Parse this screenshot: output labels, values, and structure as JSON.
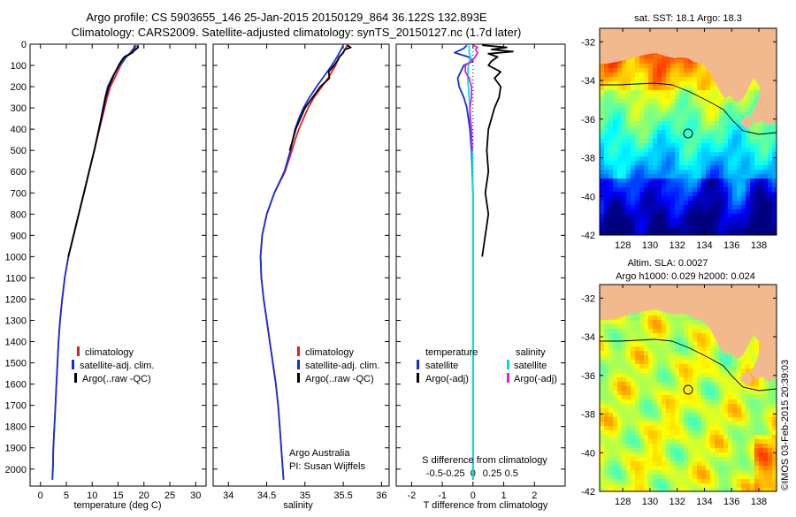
{
  "colors": {
    "climatology": "#e02020",
    "satellite": "#1030e0",
    "argo": "#000000",
    "sal_satellite": "#00e0e0",
    "sal_argo": "#e020e0",
    "land": "#f2b98e"
  },
  "header": {
    "line1": "Argo profile: CS 5903655_146 25-Jan-2015 20150129_864 36.122S 132.893E",
    "line2": "Climatology: CARS2009. Satellite-adjusted climatology: synTS_20150127.nc (1.7d later)"
  },
  "depth_ticks": [
    0,
    100,
    200,
    300,
    400,
    500,
    600,
    700,
    800,
    900,
    1000,
    1100,
    1200,
    1300,
    1400,
    1500,
    1600,
    1700,
    1800,
    1900,
    2000
  ],
  "depth_tick_labels": [
    "0",
    "100",
    "200",
    "300",
    "400",
    "500",
    "600",
    "700",
    "800",
    "900",
    "1000",
    "1100",
    "1200",
    "1300",
    "1400",
    "1500",
    "1600",
    "1700",
    "1800",
    "1900",
    "2000"
  ],
  "chart_data": [
    {
      "type": "line",
      "id": "temperature",
      "xlabel": "temperature (deg C)",
      "ylabel": "depth",
      "xlim": [
        -2,
        32
      ],
      "ylim": [
        2080,
        0
      ],
      "xticks": [
        0,
        5,
        10,
        15,
        20,
        25,
        30
      ],
      "xtick_labels": [
        "0",
        "5",
        "10",
        "15",
        "20",
        "25",
        "30"
      ],
      "legend": [
        "climatology",
        "satellite-adj. clim.",
        "Argo(..raw -QC)"
      ],
      "series": [
        {
          "name": "climatology",
          "depth": [
            5,
            20,
            40,
            60,
            80,
            100,
            150,
            200,
            250,
            300,
            400,
            500,
            600,
            700,
            800,
            900,
            1000,
            1100,
            1200,
            1300,
            1400,
            1500,
            1600,
            1700,
            1800,
            1900,
            2000,
            2050
          ],
          "values": [
            18.5,
            18.3,
            17.8,
            16.5,
            16.0,
            15.5,
            14.5,
            13.5,
            12.9,
            12.4,
            11.4,
            10.4,
            9.4,
            8.4,
            7.4,
            6.4,
            5.4,
            4.7,
            4.2,
            3.8,
            3.5,
            3.3,
            3.1,
            2.9,
            2.7,
            2.5,
            2.4,
            2.3
          ]
        },
        {
          "name": "satellite-adj. clim.",
          "depth": [
            5,
            20,
            40,
            60,
            80,
            100,
            150,
            200,
            250,
            300,
            400,
            500,
            600,
            700,
            800,
            900,
            1000,
            1100,
            1200,
            1300,
            1400,
            1500,
            1600,
            1700,
            1800,
            1900,
            2000,
            2050
          ],
          "values": [
            18.2,
            18.0,
            17.4,
            16.6,
            16.0,
            15.2,
            14.0,
            13.0,
            12.5,
            12.1,
            11.3,
            10.4,
            9.4,
            8.4,
            7.4,
            6.4,
            5.4,
            4.7,
            4.2,
            3.8,
            3.5,
            3.3,
            3.1,
            2.9,
            2.7,
            2.5,
            2.4,
            2.3
          ]
        },
        {
          "name": "Argo(..raw -QC)",
          "depth": [
            5,
            15,
            25,
            40,
            60,
            80,
            100,
            150,
            200,
            250,
            300,
            400,
            500,
            600,
            700,
            800,
            900,
            1000
          ],
          "values": [
            18.8,
            18.9,
            18.4,
            17.7,
            16.2,
            15.6,
            15.1,
            14.1,
            13.2,
            12.6,
            12.2,
            11.3,
            10.4,
            9.4,
            8.4,
            7.4,
            6.4,
            5.4
          ]
        }
      ]
    },
    {
      "type": "line",
      "id": "salinity",
      "xlabel": "salinity",
      "ylabel": "depth",
      "xlim": [
        33.8,
        36.1
      ],
      "ylim": [
        2080,
        0
      ],
      "xticks": [
        34,
        34.5,
        35,
        35.5,
        36
      ],
      "xtick_labels": [
        "34",
        "34.5",
        "35",
        "35.5",
        "36"
      ],
      "legend": [
        "climatology",
        "satellite-adj. clim.",
        "Argo(..raw -QC)"
      ],
      "annotation": [
        "Argo Australia",
        "PI: Susan Wijffels"
      ],
      "series": [
        {
          "name": "climatology",
          "depth": [
            5,
            20,
            40,
            60,
            100,
            150,
            200,
            250,
            300,
            350,
            400,
            450,
            500,
            600,
            700,
            800,
            900,
            1000,
            1100,
            1200,
            1300,
            1400,
            1500,
            1600,
            1700,
            1800,
            1900,
            2000,
            2050
          ],
          "values": [
            35.55,
            35.53,
            35.5,
            35.45,
            35.4,
            35.32,
            35.22,
            35.12,
            35.04,
            34.98,
            34.92,
            34.87,
            34.83,
            34.74,
            34.6,
            34.5,
            34.44,
            34.42,
            34.43,
            34.46,
            34.5,
            34.54,
            34.58,
            34.62,
            34.65,
            34.67,
            34.69,
            34.71,
            34.72
          ]
        },
        {
          "name": "satellite-adj. clim.",
          "depth": [
            5,
            20,
            40,
            60,
            100,
            150,
            200,
            250,
            300,
            350,
            400,
            450,
            500,
            600,
            700,
            800,
            900,
            1000,
            1100,
            1200,
            1300,
            1400,
            1500,
            1600,
            1700,
            1800,
            1900,
            2000,
            2050
          ],
          "values": [
            35.5,
            35.48,
            35.45,
            35.42,
            35.35,
            35.25,
            35.15,
            35.06,
            34.98,
            34.92,
            34.87,
            34.84,
            34.81,
            34.73,
            34.6,
            34.5,
            34.44,
            34.42,
            34.43,
            34.46,
            34.5,
            34.54,
            34.58,
            34.62,
            34.65,
            34.67,
            34.69,
            34.71,
            34.72
          ]
        },
        {
          "name": "Argo(..raw -QC)",
          "depth": [
            5,
            15,
            25,
            40,
            60,
            80,
            100,
            130,
            160,
            200,
            250,
            300,
            400,
            500
          ],
          "values": [
            35.55,
            35.6,
            35.52,
            35.5,
            35.45,
            35.42,
            35.38,
            35.31,
            35.32,
            35.2,
            35.1,
            35.0,
            34.88,
            34.8
          ]
        }
      ]
    },
    {
      "type": "line",
      "id": "difference",
      "xlabel": "T difference from climatology",
      "xlabel_top": "S difference from climatology",
      "ylabel": "depth",
      "xlim": [
        -2.5,
        3.0
      ],
      "ylim": [
        2080,
        0
      ],
      "xticks": [
        -2,
        -1,
        0,
        1,
        2
      ],
      "xtick_labels": [
        "-2",
        "-1",
        "0",
        "1",
        "2"
      ],
      "xticks_top": [
        -0.5,
        -0.25,
        0,
        0.25,
        0.5
      ],
      "xtick_labels_top": [
        "-0.5",
        "-0.25",
        "0",
        "0.25",
        "0.5"
      ],
      "legend_headers": [
        "temperature",
        "salinity"
      ],
      "legend": [
        "satellite",
        "Argo(-adj)",
        "satellite",
        "Argo(-adj)"
      ],
      "series": [
        {
          "name": "T satellite",
          "depth": [
            5,
            20,
            40,
            60,
            80,
            100,
            130,
            160,
            200,
            250,
            300,
            400,
            500,
            700,
            1000,
            1500,
            2000,
            2050
          ],
          "values": [
            -0.2,
            -0.3,
            -0.6,
            -0.15,
            0.0,
            -0.3,
            -0.4,
            -0.5,
            -0.45,
            -0.3,
            -0.2,
            -0.1,
            -0.05,
            0.0,
            0.0,
            0.0,
            0.0,
            0.0
          ]
        },
        {
          "name": "T Argo(-adj)",
          "depth": [
            5,
            15,
            25,
            35,
            45,
            60,
            80,
            100,
            130,
            160,
            200,
            250,
            300,
            400,
            500,
            600,
            700,
            800,
            900,
            1000
          ],
          "values": [
            0.3,
            1.1,
            0.6,
            1.3,
            0.5,
            0.8,
            0.6,
            0.5,
            0.9,
            0.7,
            0.9,
            0.85,
            0.7,
            0.5,
            0.45,
            0.5,
            0.4,
            0.5,
            0.4,
            0.3
          ]
        },
        {
          "name": "S satellite",
          "depth": [
            5,
            20,
            40,
            60,
            100,
            150,
            200,
            300,
            400,
            500,
            700,
            1000,
            1500,
            2000,
            2050
          ],
          "values": [
            -0.05,
            -0.05,
            -0.05,
            -0.03,
            -0.06,
            -0.07,
            -0.06,
            -0.04,
            -0.02,
            -0.01,
            0.0,
            0.0,
            0.0,
            0.0,
            0.0
          ]
        },
        {
          "name": "S Argo(-adj)",
          "depth": [
            5,
            15,
            25,
            40,
            60,
            80,
            100,
            130,
            160,
            200,
            250,
            300,
            350,
            400,
            500
          ],
          "values": [
            0.0,
            0.06,
            0.03,
            0.06,
            0.03,
            -0.02,
            -0.1,
            -0.1,
            -0.05,
            -0.02,
            -0.02,
            -0.04,
            -0.04,
            -0.02,
            -0.01
          ]
        }
      ]
    }
  ],
  "maps": {
    "lon_ticks": [
      "128",
      "130",
      "132",
      "134",
      "136",
      "138"
    ],
    "lat_ticks": [
      "-32",
      "-34",
      "-36",
      "-38",
      "-40",
      "-42"
    ],
    "map1": {
      "title": "sat. SST: 18.1  Argo: 18.3",
      "type": "heatmap",
      "variable": "SST"
    },
    "map2": {
      "title_line1": "Altim. SLA: 0.0027",
      "title_line2": "Argo h1000: 0.029 h2000: 0.024",
      "type": "heatmap",
      "variable": "SLA"
    },
    "profile_location": {
      "lon": 132.893,
      "lat": -36.122
    }
  },
  "footer": {
    "credit": "©IMOS 03-Feb-2015 20:39:03"
  }
}
